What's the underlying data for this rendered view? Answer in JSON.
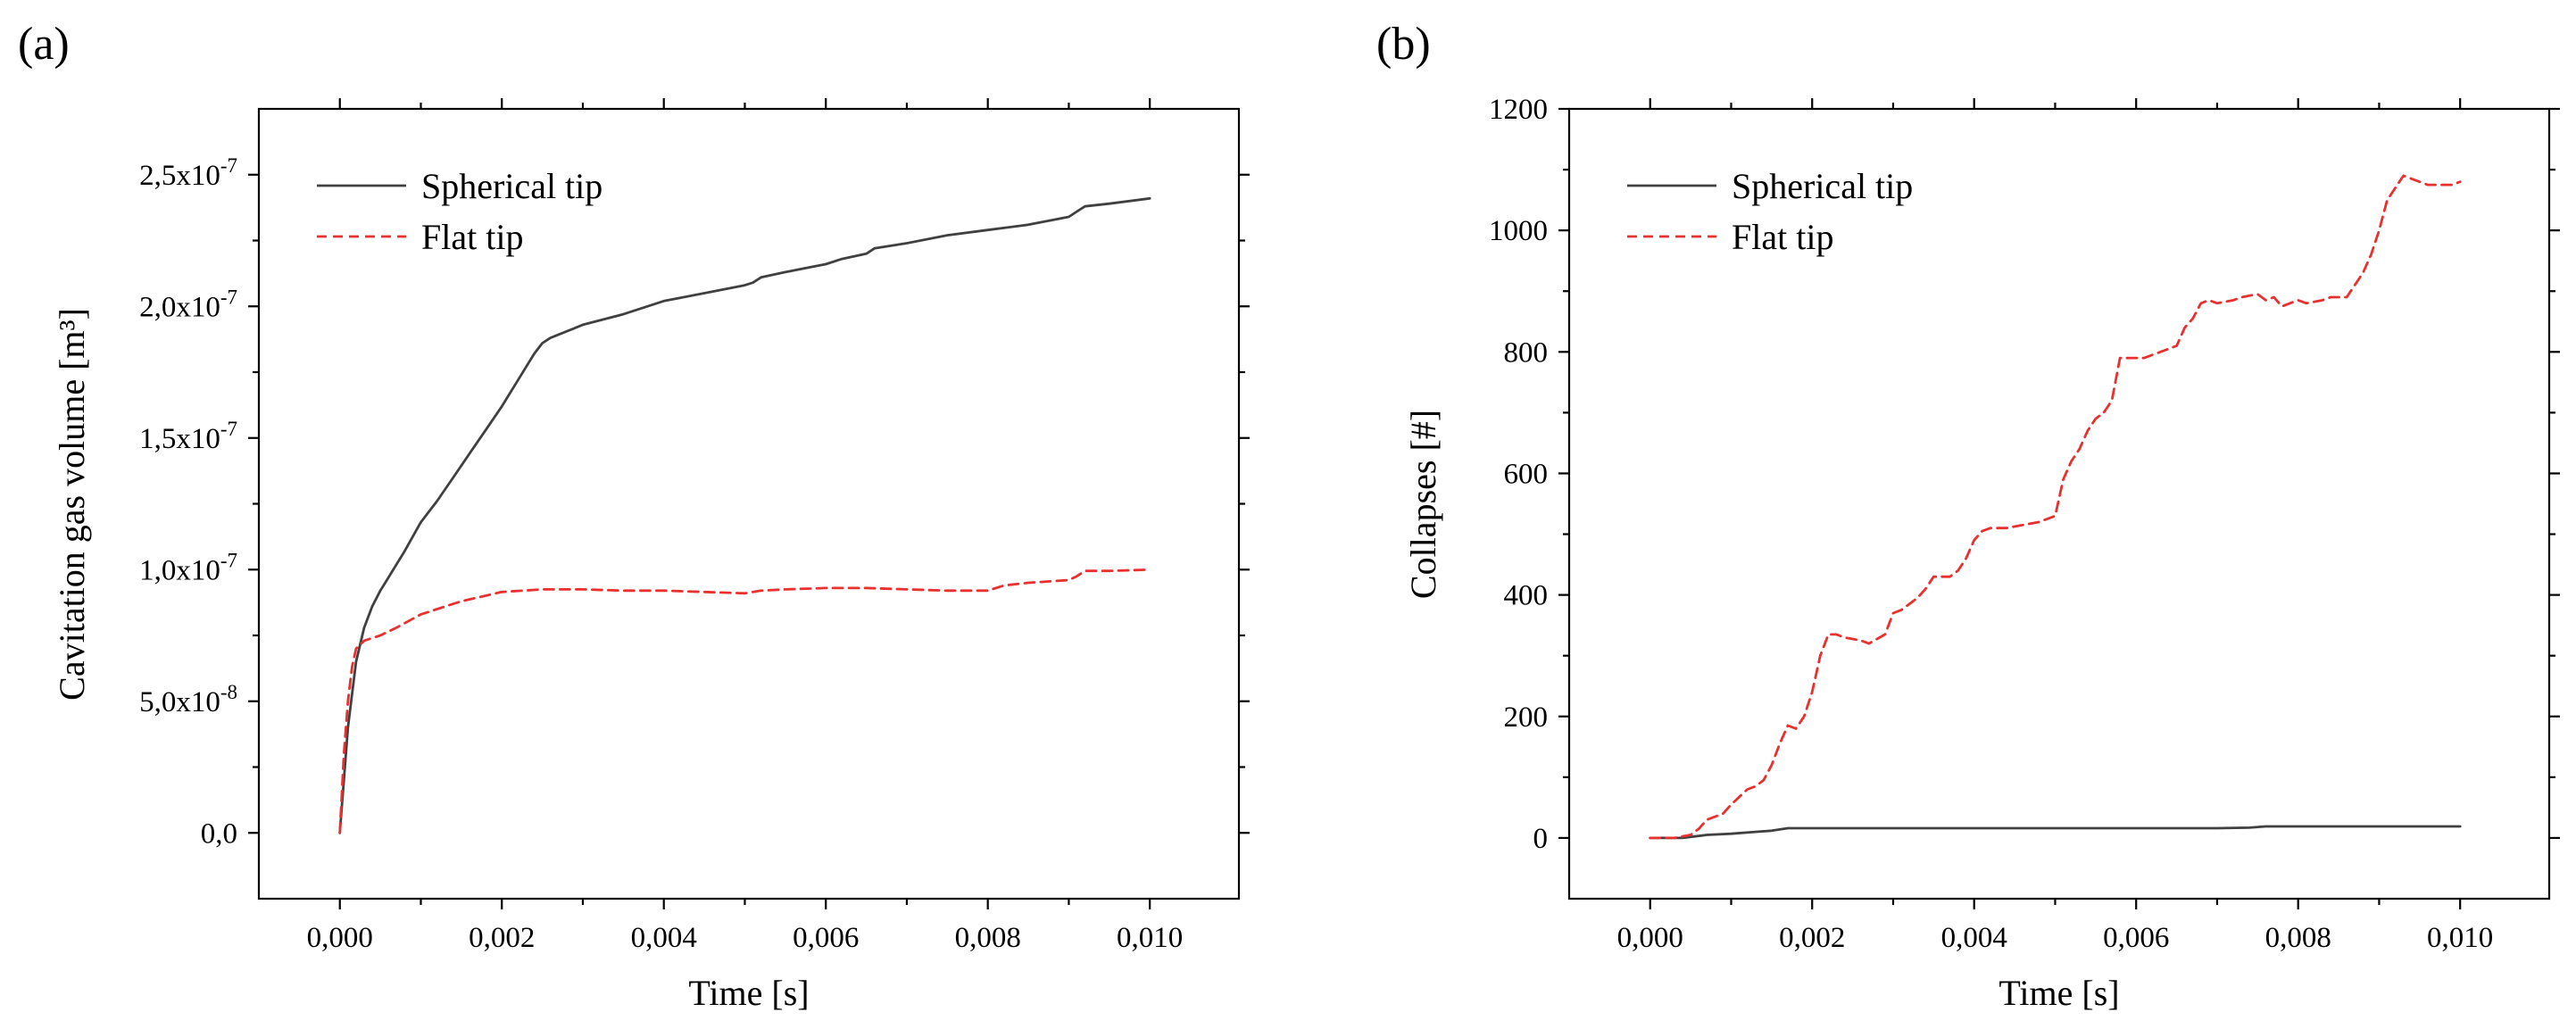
{
  "chart_data": [
    {
      "type": "line",
      "panel_label": "(a)",
      "xlabel": "Time [s]",
      "ylabel": "Cavitation gas volume [m³]",
      "xlim": [
        -0.001,
        0.0111
      ],
      "ylim": [
        -2.5e-08,
        2.75e-07
      ],
      "xticks": [
        {
          "value": 0.0,
          "label": "0,000"
        },
        {
          "value": 0.002,
          "label": "0,002"
        },
        {
          "value": 0.004,
          "label": "0,004"
        },
        {
          "value": 0.006,
          "label": "0,006"
        },
        {
          "value": 0.008,
          "label": "0,008"
        },
        {
          "value": 0.01,
          "label": "0,010"
        }
      ],
      "yticks": [
        {
          "value": 0,
          "label": "0,0",
          "exp": ""
        },
        {
          "value": 5e-08,
          "label": "5,0x10",
          "exp": "-8"
        },
        {
          "value": 1e-07,
          "label": "1,0x10",
          "exp": "-7"
        },
        {
          "value": 1.5e-07,
          "label": "1,5x10",
          "exp": "-7"
        },
        {
          "value": 2e-07,
          "label": "2,0x10",
          "exp": "-7"
        },
        {
          "value": 2.5e-07,
          "label": "2,5x10",
          "exp": "-7"
        }
      ],
      "grid": false,
      "legend_position": "top-left",
      "series": [
        {
          "name": "Spherical tip",
          "color": "#404040",
          "dash": "solid",
          "x": [
            0,
            0.0001,
            0.0002,
            0.0003,
            0.0004,
            0.0005,
            0.0006,
            0.0008,
            0.001,
            0.0012,
            0.0014,
            0.0016,
            0.0018,
            0.002,
            0.0022,
            0.0024,
            0.0025,
            0.0026,
            0.0028,
            0.003,
            0.0035,
            0.004,
            0.0045,
            0.005,
            0.0051,
            0.0052,
            0.0055,
            0.006,
            0.0062,
            0.0065,
            0.0066,
            0.007,
            0.0075,
            0.008,
            0.0085,
            0.009,
            0.0091,
            0.0092,
            0.0095,
            0.01
          ],
          "values": [
            0,
            4e-08,
            6.5e-08,
            7.8e-08,
            8.6e-08,
            9.2e-08,
            9.7e-08,
            1.07e-07,
            1.18e-07,
            1.26e-07,
            1.35e-07,
            1.44e-07,
            1.53e-07,
            1.62e-07,
            1.72e-07,
            1.82e-07,
            1.86e-07,
            1.88e-07,
            1.905e-07,
            1.93e-07,
            1.97e-07,
            2.02e-07,
            2.05e-07,
            2.08e-07,
            2.09e-07,
            2.11e-07,
            2.13e-07,
            2.16e-07,
            2.18e-07,
            2.2e-07,
            2.22e-07,
            2.24e-07,
            2.27e-07,
            2.29e-07,
            2.31e-07,
            2.34e-07,
            2.36e-07,
            2.38e-07,
            2.39e-07,
            2.41e-07
          ]
        },
        {
          "name": "Flat tip",
          "color": "#e8302f",
          "dash": "dashed",
          "x": [
            0,
            5e-05,
            0.0001,
            0.00015,
            0.0002,
            0.0003,
            0.0005,
            0.0007,
            0.001,
            0.0015,
            0.002,
            0.0025,
            0.003,
            0.0035,
            0.004,
            0.0045,
            0.005,
            0.0052,
            0.0055,
            0.006,
            0.0065,
            0.007,
            0.0075,
            0.008,
            0.0082,
            0.0085,
            0.009,
            0.0091,
            0.0092,
            0.0095,
            0.01
          ],
          "values": [
            0,
            3e-08,
            5e-08,
            6.3e-08,
            7e-08,
            7.3e-08,
            7.5e-08,
            7.8e-08,
            8.3e-08,
            8.8e-08,
            9.15e-08,
            9.25e-08,
            9.25e-08,
            9.2e-08,
            9.2e-08,
            9.15e-08,
            9.1e-08,
            9.2e-08,
            9.25e-08,
            9.3e-08,
            9.3e-08,
            9.25e-08,
            9.2e-08,
            9.2e-08,
            9.4e-08,
            9.5e-08,
            9.6e-08,
            9.75e-08,
            9.95e-08,
            9.95e-08,
            1e-07
          ]
        }
      ]
    },
    {
      "type": "line",
      "panel_label": "(b)",
      "xlabel": "Time [s]",
      "ylabel": "Collapses [#]",
      "xlim": [
        -0.001,
        0.0111
      ],
      "ylim": [
        -100,
        1200
      ],
      "xticks": [
        {
          "value": 0.0,
          "label": "0,000"
        },
        {
          "value": 0.002,
          "label": "0,002"
        },
        {
          "value": 0.004,
          "label": "0,004"
        },
        {
          "value": 0.006,
          "label": "0,006"
        },
        {
          "value": 0.008,
          "label": "0,008"
        },
        {
          "value": 0.01,
          "label": "0,010"
        }
      ],
      "yticks": [
        {
          "value": 0,
          "label": "0",
          "exp": ""
        },
        {
          "value": 200,
          "label": "200",
          "exp": ""
        },
        {
          "value": 400,
          "label": "400",
          "exp": ""
        },
        {
          "value": 600,
          "label": "600",
          "exp": ""
        },
        {
          "value": 800,
          "label": "800",
          "exp": ""
        },
        {
          "value": 1000,
          "label": "1000",
          "exp": ""
        },
        {
          "value": 1200,
          "label": "1200",
          "exp": ""
        }
      ],
      "grid": false,
      "legend_position": "top-left",
      "series": [
        {
          "name": "Spherical tip",
          "color": "#404040",
          "dash": "solid",
          "x": [
            0,
            0.0004,
            0.0007,
            0.001,
            0.0013,
            0.0015,
            0.0016,
            0.0017,
            0.003,
            0.005,
            0.007,
            0.0074,
            0.0076,
            0.008,
            0.009,
            0.01
          ],
          "values": [
            0,
            0,
            5,
            7,
            10,
            12,
            14,
            16,
            16,
            16,
            16,
            17,
            19,
            19,
            19,
            19
          ]
        },
        {
          "name": "Flat tip",
          "color": "#e8302f",
          "dash": "dashed",
          "x": [
            0,
            0.0003,
            0.0005,
            0.0006,
            0.0007,
            0.0009,
            0.001,
            0.0012,
            0.0013,
            0.0014,
            0.0015,
            0.0016,
            0.0017,
            0.0018,
            0.0019,
            0.002,
            0.0021,
            0.0022,
            0.0023,
            0.0024,
            0.0026,
            0.0027,
            0.0029,
            0.003,
            0.0031,
            0.0033,
            0.0034,
            0.0035,
            0.0037,
            0.0038,
            0.0039,
            0.004,
            0.0041,
            0.0042,
            0.0044,
            0.0046,
            0.0048,
            0.005,
            0.0051,
            0.0052,
            0.0053,
            0.0054,
            0.0055,
            0.0056,
            0.0057,
            0.0058,
            0.0059,
            0.0061,
            0.0063,
            0.0065,
            0.0066,
            0.0067,
            0.0068,
            0.0069,
            0.007,
            0.0072,
            0.0073,
            0.0075,
            0.0076,
            0.0077,
            0.0078,
            0.0079,
            0.008,
            0.0081,
            0.0083,
            0.0084,
            0.0086,
            0.0088,
            0.0089,
            0.009,
            0.0091,
            0.0093,
            0.0094,
            0.0096,
            0.0098,
            0.0099,
            0.01
          ],
          "values": [
            0,
            0,
            5,
            15,
            30,
            40,
            55,
            80,
            85,
            95,
            120,
            155,
            185,
            180,
            200,
            240,
            300,
            335,
            335,
            330,
            325,
            320,
            335,
            370,
            375,
            395,
            410,
            430,
            430,
            440,
            460,
            490,
            505,
            510,
            510,
            515,
            520,
            530,
            590,
            620,
            640,
            670,
            690,
            700,
            720,
            790,
            790,
            790,
            800,
            810,
            840,
            855,
            880,
            885,
            880,
            885,
            890,
            895,
            885,
            890,
            875,
            880,
            885,
            880,
            885,
            890,
            890,
            930,
            960,
            1000,
            1050,
            1090,
            1085,
            1075,
            1075,
            1075,
            1080
          ]
        }
      ]
    }
  ]
}
